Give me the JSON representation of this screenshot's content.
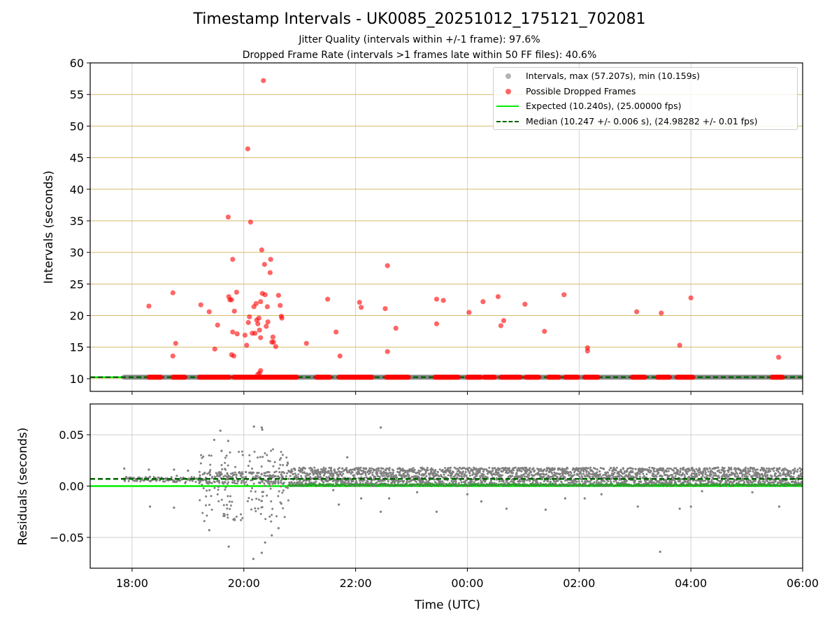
{
  "title": "Timestamp Intervals - UK0085_20251012_175121_702081",
  "subtitle_1": "Jitter Quality (intervals within +/-1 frame): 97.6%",
  "subtitle_2": "Dropped Frame Rate (intervals >1 frames late within 50 FF files): 40.6%",
  "legend": {
    "intervals": "Intervals, max (57.207s), min (10.159s)",
    "dropped": "Possible Dropped Frames",
    "expected": "Expected (10.240s), (25.00000 fps)",
    "median": "Median (10.247 +/- 0.006 s), (24.98282 +/- 0.01 fps)"
  },
  "colors": {
    "intervals": "#808080",
    "dropped": "#ff0000",
    "expected": "#00ee00",
    "median": "#006400",
    "hgrid_top": "#d2b45a",
    "grid": "#b0b0b0"
  },
  "chart_data": [
    {
      "type": "scatter",
      "panel": "top",
      "xlabel": "Time (UTC)",
      "ylabel": "Intervals (seconds)",
      "xlim_hours": [
        17.25,
        30.0
      ],
      "ylim": [
        8,
        60
      ],
      "x_tick_hours": [
        18,
        20,
        22,
        24,
        26,
        28,
        30
      ],
      "x_tick_labels": [
        "18:00",
        "20:00",
        "22:00",
        "00:00",
        "02:00",
        "04:00",
        "06:00"
      ],
      "y_ticks": [
        10,
        15,
        20,
        25,
        30,
        35,
        40,
        45,
        50,
        55,
        60
      ],
      "y_tick_labels": [
        "10",
        "15",
        "20",
        "25",
        "30",
        "35",
        "40",
        "45",
        "50",
        "55",
        "60"
      ],
      "expected": 10.24,
      "median": 10.247,
      "baseline_interval_s": 10.24,
      "baseline_range_hours": [
        17.85,
        30.0
      ],
      "dropped_baseline_clusters_hours": [
        [
          18.3,
          18.52
        ],
        [
          18.73,
          18.95
        ],
        [
          19.2,
          19.75
        ],
        [
          19.82,
          20.95
        ],
        [
          21.3,
          21.55
        ],
        [
          21.7,
          22.2
        ],
        [
          22.2,
          22.3
        ],
        [
          22.55,
          22.95
        ],
        [
          23.42,
          23.85
        ],
        [
          24.0,
          24.25
        ],
        [
          24.3,
          24.5
        ],
        [
          24.6,
          24.95
        ],
        [
          25.05,
          25.28
        ],
        [
          25.45,
          25.65
        ],
        [
          25.75,
          25.98
        ],
        [
          26.1,
          26.35
        ],
        [
          26.95,
          27.18
        ],
        [
          27.4,
          27.62
        ],
        [
          27.75,
          28.05
        ],
        [
          29.45,
          29.65
        ]
      ],
      "dropped_frames": [
        {
          "x": 18.3,
          "y": 21.5
        },
        {
          "x": 18.73,
          "y": 23.6
        },
        {
          "x": 18.73,
          "y": 13.6
        },
        {
          "x": 18.78,
          "y": 15.6
        },
        {
          "x": 19.23,
          "y": 21.7
        },
        {
          "x": 19.38,
          "y": 20.6
        },
        {
          "x": 19.48,
          "y": 14.7
        },
        {
          "x": 19.53,
          "y": 18.5
        },
        {
          "x": 19.72,
          "y": 35.6
        },
        {
          "x": 19.73,
          "y": 23.0
        },
        {
          "x": 19.75,
          "y": 22.5
        },
        {
          "x": 19.78,
          "y": 22.5
        },
        {
          "x": 19.8,
          "y": 28.9
        },
        {
          "x": 19.78,
          "y": 13.8
        },
        {
          "x": 19.8,
          "y": 17.4
        },
        {
          "x": 19.82,
          "y": 13.6
        },
        {
          "x": 19.83,
          "y": 20.7
        },
        {
          "x": 19.87,
          "y": 23.7
        },
        {
          "x": 19.88,
          "y": 17.1
        },
        {
          "x": 20.02,
          "y": 16.9
        },
        {
          "x": 20.05,
          "y": 15.3
        },
        {
          "x": 20.07,
          "y": 46.4
        },
        {
          "x": 20.08,
          "y": 18.9
        },
        {
          "x": 20.1,
          "y": 19.8
        },
        {
          "x": 20.12,
          "y": 34.8
        },
        {
          "x": 20.15,
          "y": 17.2
        },
        {
          "x": 20.18,
          "y": 21.4
        },
        {
          "x": 20.2,
          "y": 17.2
        },
        {
          "x": 20.22,
          "y": 21.9
        },
        {
          "x": 20.23,
          "y": 19.3
        },
        {
          "x": 20.25,
          "y": 18.7
        },
        {
          "x": 20.27,
          "y": 19.6
        },
        {
          "x": 20.28,
          "y": 17.7
        },
        {
          "x": 20.3,
          "y": 16.5
        },
        {
          "x": 20.3,
          "y": 22.2
        },
        {
          "x": 20.32,
          "y": 30.4
        },
        {
          "x": 20.33,
          "y": 23.5
        },
        {
          "x": 20.35,
          "y": 57.2
        },
        {
          "x": 20.37,
          "y": 28.1
        },
        {
          "x": 20.38,
          "y": 23.3
        },
        {
          "x": 20.4,
          "y": 18.3
        },
        {
          "x": 20.42,
          "y": 21.4
        },
        {
          "x": 20.43,
          "y": 19.0
        },
        {
          "x": 20.47,
          "y": 26.8
        },
        {
          "x": 20.48,
          "y": 28.9
        },
        {
          "x": 20.5,
          "y": 15.8
        },
        {
          "x": 20.52,
          "y": 16.6
        },
        {
          "x": 20.53,
          "y": 15.8
        },
        {
          "x": 20.57,
          "y": 15.1
        },
        {
          "x": 20.62,
          "y": 23.2
        },
        {
          "x": 20.65,
          "y": 21.6
        },
        {
          "x": 20.67,
          "y": 19.9
        },
        {
          "x": 20.68,
          "y": 19.6
        },
        {
          "x": 20.28,
          "y": 10.9
        },
        {
          "x": 20.3,
          "y": 11.3
        },
        {
          "x": 20.25,
          "y": 10.7
        },
        {
          "x": 21.12,
          "y": 15.6
        },
        {
          "x": 21.5,
          "y": 22.6
        },
        {
          "x": 21.65,
          "y": 17.4
        },
        {
          "x": 21.72,
          "y": 13.6
        },
        {
          "x": 22.07,
          "y": 22.1
        },
        {
          "x": 22.1,
          "y": 21.3
        },
        {
          "x": 22.53,
          "y": 21.1
        },
        {
          "x": 22.57,
          "y": 27.9
        },
        {
          "x": 22.57,
          "y": 14.3
        },
        {
          "x": 22.72,
          "y": 18.0
        },
        {
          "x": 23.45,
          "y": 22.6
        },
        {
          "x": 23.45,
          "y": 18.7
        },
        {
          "x": 23.57,
          "y": 22.4
        },
        {
          "x": 24.03,
          "y": 20.5
        },
        {
          "x": 24.28,
          "y": 22.2
        },
        {
          "x": 24.55,
          "y": 23.0
        },
        {
          "x": 24.6,
          "y": 18.4
        },
        {
          "x": 24.65,
          "y": 19.2
        },
        {
          "x": 25.03,
          "y": 21.8
        },
        {
          "x": 25.38,
          "y": 17.5
        },
        {
          "x": 25.73,
          "y": 23.3
        },
        {
          "x": 26.15,
          "y": 14.9
        },
        {
          "x": 26.15,
          "y": 14.4
        },
        {
          "x": 27.03,
          "y": 20.6
        },
        {
          "x": 27.47,
          "y": 20.4
        },
        {
          "x": 27.8,
          "y": 15.3
        },
        {
          "x": 28.0,
          "y": 22.8
        },
        {
          "x": 29.57,
          "y": 13.4
        }
      ]
    },
    {
      "type": "scatter",
      "panel": "bottom",
      "xlabel": "Time (UTC)",
      "ylabel": "Residuals (seconds)",
      "xlim_hours": [
        17.25,
        30.0
      ],
      "ylim": [
        -0.08,
        0.08
      ],
      "y_ticks": [
        -0.05,
        0.0,
        0.05
      ],
      "y_tick_labels": [
        "−0.05",
        "0.00",
        "0.05"
      ],
      "expected": 0.0,
      "median": 0.007,
      "residual_band": {
        "range_hours": [
          20.8,
          30.0
        ],
        "min": 0.0,
        "max": 0.018
      },
      "residual_outliers": [
        {
          "x": 19.58,
          "y": 0.054
        },
        {
          "x": 19.47,
          "y": 0.045
        },
        {
          "x": 19.72,
          "y": 0.044
        },
        {
          "x": 20.18,
          "y": 0.058
        },
        {
          "x": 20.32,
          "y": 0.057
        },
        {
          "x": 20.33,
          "y": 0.055
        },
        {
          "x": 22.45,
          "y": 0.057
        },
        {
          "x": 21.85,
          "y": 0.028
        },
        {
          "x": 19.38,
          "y": -0.043
        },
        {
          "x": 19.73,
          "y": -0.059
        },
        {
          "x": 20.17,
          "y": -0.071
        },
        {
          "x": 20.32,
          "y": -0.065
        },
        {
          "x": 20.38,
          "y": -0.055
        },
        {
          "x": 20.5,
          "y": -0.048
        },
        {
          "x": 20.62,
          "y": -0.041
        },
        {
          "x": 27.45,
          "y": -0.064
        },
        {
          "x": 18.32,
          "y": -0.02
        },
        {
          "x": 18.75,
          "y": -0.021
        },
        {
          "x": 27.05,
          "y": -0.02
        },
        {
          "x": 27.8,
          "y": -0.022
        },
        {
          "x": 28.0,
          "y": -0.02
        },
        {
          "x": 29.58,
          "y": -0.02
        },
        {
          "x": 22.45,
          "y": -0.025
        },
        {
          "x": 23.45,
          "y": -0.025
        },
        {
          "x": 24.25,
          "y": -0.015
        },
        {
          "x": 24.7,
          "y": -0.022
        },
        {
          "x": 25.4,
          "y": -0.023
        },
        {
          "x": 26.1,
          "y": -0.012
        },
        {
          "x": 25.75,
          "y": -0.012
        },
        {
          "x": 24.0,
          "y": -0.008
        },
        {
          "x": 26.4,
          "y": -0.008
        },
        {
          "x": 28.2,
          "y": -0.005
        },
        {
          "x": 29.1,
          "y": -0.006
        },
        {
          "x": 23.1,
          "y": -0.006
        },
        {
          "x": 22.1,
          "y": -0.012
        },
        {
          "x": 21.6,
          "y": -0.004
        },
        {
          "x": 21.7,
          "y": -0.018
        },
        {
          "x": 22.6,
          "y": -0.012
        }
      ],
      "residual_scatter_cluster": {
        "range_hours": [
          19.2,
          20.8
        ],
        "min": -0.035,
        "max": 0.036
      },
      "residual_early_points": [
        {
          "x": 17.86,
          "y": 0.017
        },
        {
          "x": 17.87,
          "y": 0.005
        },
        {
          "x": 18.3,
          "y": 0.016
        },
        {
          "x": 18.32,
          "y": 0.009
        },
        {
          "x": 18.75,
          "y": 0.016
        },
        {
          "x": 18.77,
          "y": 0.004
        },
        {
          "x": 18.8,
          "y": 0.01
        },
        {
          "x": 18.95,
          "y": 0.003
        },
        {
          "x": 19.0,
          "y": 0.015
        }
      ]
    }
  ]
}
